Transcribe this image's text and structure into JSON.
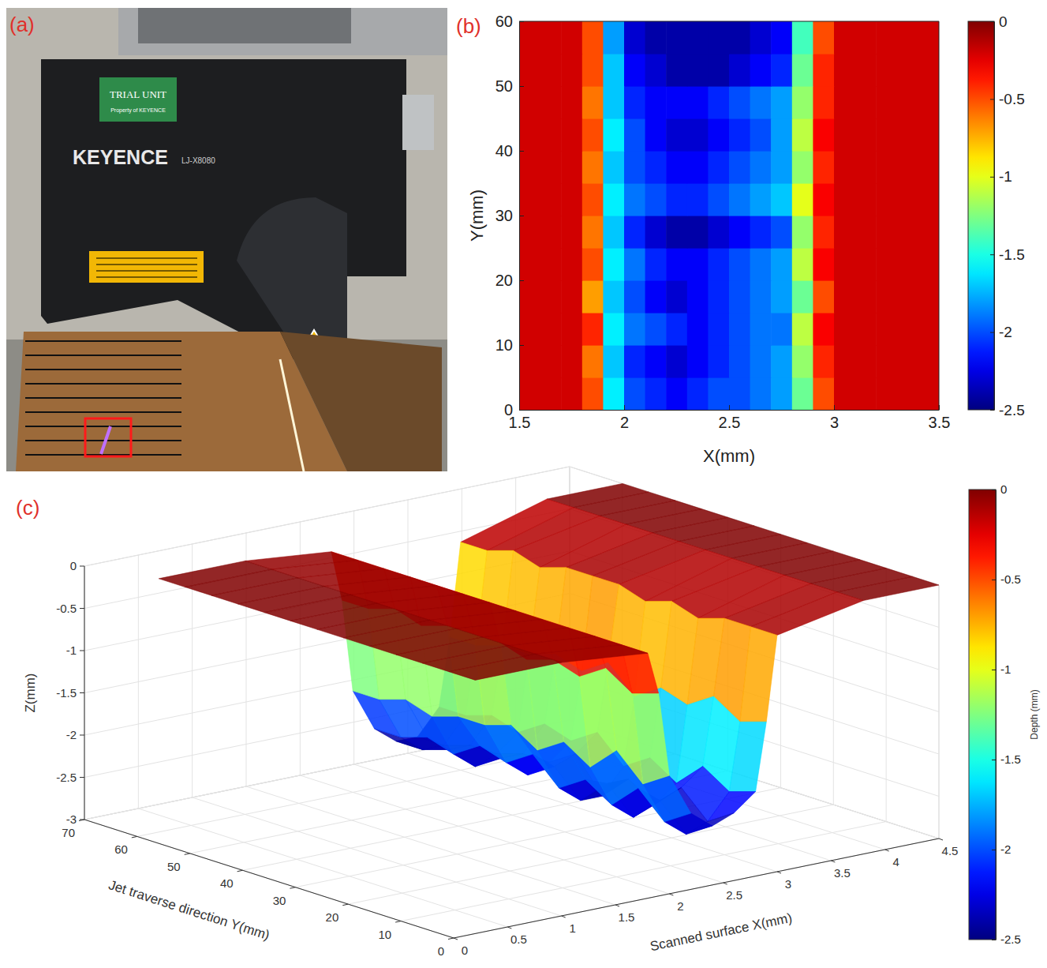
{
  "chart_data": [
    {
      "type": "photo",
      "panel": "(a)",
      "labels": [
        "TRIAL UNIT",
        "Property of KEYENCE",
        "KEYENCE",
        "LJ-X8080"
      ]
    },
    {
      "type": "heatmap",
      "panel": "(b)",
      "x_label": "X(mm)",
      "y_label": "Y(mm)",
      "xlim": [
        1.5,
        3.5
      ],
      "xticks": [
        1.5,
        2,
        2.5,
        3,
        3.5
      ],
      "ylim": [
        0,
        60
      ],
      "yticks": [
        0,
        10,
        20,
        30,
        40,
        50,
        60
      ],
      "x": [
        1.55,
        1.65,
        1.75,
        1.85,
        1.95,
        2.05,
        2.15,
        2.25,
        2.35,
        2.45,
        2.55,
        2.65,
        2.75,
        2.85,
        2.95,
        3.05,
        3.15,
        3.25,
        3.35,
        3.45
      ],
      "y": [
        2.5,
        7.5,
        12.5,
        17.5,
        22.5,
        27.5,
        32.5,
        37.5,
        42.5,
        47.5,
        52.5,
        57.5
      ],
      "values": [
        [
          -0.2,
          -0.2,
          -0.2,
          -0.5,
          -1.6,
          -2.0,
          -2.1,
          -2.2,
          -2.1,
          -2.0,
          -2.0,
          -1.9,
          -1.8,
          -1.3,
          -0.5,
          -0.2,
          -0.2,
          -0.2,
          -0.2,
          -0.2
        ],
        [
          -0.2,
          -0.2,
          -0.2,
          -0.6,
          -1.7,
          -2.1,
          -2.2,
          -2.3,
          -2.2,
          -2.1,
          -2.0,
          -1.9,
          -1.8,
          -1.2,
          -0.4,
          -0.2,
          -0.2,
          -0.2,
          -0.2,
          -0.2
        ],
        [
          -0.2,
          -0.2,
          -0.2,
          -0.4,
          -1.6,
          -1.9,
          -2.0,
          -2.1,
          -2.2,
          -2.1,
          -2.0,
          -1.9,
          -1.9,
          -1.1,
          -0.3,
          -0.2,
          -0.2,
          -0.2,
          -0.2,
          -0.2
        ],
        [
          -0.2,
          -0.2,
          -0.2,
          -0.7,
          -1.7,
          -2.0,
          -2.2,
          -2.3,
          -2.2,
          -2.1,
          -2.0,
          -1.9,
          -1.8,
          -1.3,
          -0.5,
          -0.2,
          -0.2,
          -0.2,
          -0.2,
          -0.2
        ],
        [
          -0.2,
          -0.2,
          -0.2,
          -0.5,
          -1.6,
          -1.9,
          -2.1,
          -2.2,
          -2.2,
          -2.1,
          -2.0,
          -1.9,
          -1.8,
          -1.1,
          -0.3,
          -0.2,
          -0.2,
          -0.2,
          -0.2,
          -0.2
        ],
        [
          -0.2,
          -0.2,
          -0.2,
          -0.6,
          -1.7,
          -2.1,
          -2.3,
          -2.4,
          -2.4,
          -2.3,
          -2.2,
          -2.1,
          -2.0,
          -1.2,
          -0.4,
          -0.2,
          -0.2,
          -0.2,
          -0.2,
          -0.2
        ],
        [
          -0.2,
          -0.2,
          -0.2,
          -0.5,
          -1.6,
          -1.9,
          -2.0,
          -2.1,
          -2.1,
          -2.0,
          -1.9,
          -1.8,
          -1.7,
          -1.0,
          -0.3,
          -0.2,
          -0.2,
          -0.2,
          -0.2,
          -0.2
        ],
        [
          -0.2,
          -0.2,
          -0.2,
          -0.6,
          -1.7,
          -2.0,
          -2.1,
          -2.2,
          -2.2,
          -2.1,
          -2.0,
          -1.9,
          -1.8,
          -1.2,
          -0.4,
          -0.2,
          -0.2,
          -0.2,
          -0.2,
          -0.2
        ],
        [
          -0.2,
          -0.2,
          -0.2,
          -0.5,
          -1.6,
          -2.0,
          -2.2,
          -2.3,
          -2.3,
          -2.2,
          -2.1,
          -2.0,
          -1.8,
          -1.1,
          -0.3,
          -0.2,
          -0.2,
          -0.2,
          -0.2,
          -0.2
        ],
        [
          -0.2,
          -0.2,
          -0.2,
          -0.6,
          -1.7,
          -2.1,
          -2.2,
          -2.2,
          -2.2,
          -2.1,
          -2.0,
          -1.9,
          -1.8,
          -1.2,
          -0.4,
          -0.2,
          -0.2,
          -0.2,
          -0.2,
          -0.2
        ],
        [
          -0.2,
          -0.2,
          -0.2,
          -0.5,
          -1.7,
          -2.2,
          -2.3,
          -2.4,
          -2.4,
          -2.4,
          -2.3,
          -2.2,
          -2.1,
          -1.3,
          -0.4,
          -0.2,
          -0.2,
          -0.2,
          -0.2,
          -0.2
        ],
        [
          -0.2,
          -0.2,
          -0.2,
          -0.5,
          -1.8,
          -2.3,
          -2.4,
          -2.4,
          -2.4,
          -2.4,
          -2.4,
          -2.3,
          -2.2,
          -1.4,
          -0.5,
          -0.2,
          -0.2,
          -0.2,
          -0.2,
          -0.2
        ]
      ],
      "colorbar": {
        "range": [
          -2.5,
          0
        ],
        "ticks": [
          0,
          -0.5,
          -1,
          -1.5,
          -2,
          -2.5
        ]
      }
    },
    {
      "type": "surface",
      "panel": "(c)",
      "x_label": "Scanned surface X(mm)",
      "y_label": "Jet traverse direction Y(mm)",
      "z_label": "Z(mm)",
      "xlim": [
        0,
        4.5
      ],
      "xticks": [
        0,
        0.5,
        1,
        1.5,
        2,
        2.5,
        3,
        3.5,
        4,
        4.5
      ],
      "ylim": [
        0,
        70
      ],
      "yticks": [
        0,
        10,
        20,
        30,
        40,
        50,
        60,
        70
      ],
      "zlim": [
        -3,
        0
      ],
      "zticks": [
        0,
        -0.5,
        -1,
        -1.5,
        -2,
        -2.5,
        -3
      ],
      "grid": true,
      "x": [
        0.2,
        1,
        1.8,
        1.9,
        2,
        2.2,
        2.4,
        2.6,
        2.8,
        2.9,
        3,
        3.8,
        4.5
      ],
      "y": [
        0,
        5,
        10,
        15,
        20,
        25,
        30,
        35,
        40,
        45,
        50,
        55,
        60
      ],
      "values": [
        [
          0,
          0,
          -0.1,
          -0.6,
          -1.6,
          -2.1,
          -2.3,
          -2.2,
          -2.0,
          -1.2,
          -0.2,
          0,
          0
        ],
        [
          0,
          0,
          -0.1,
          -0.7,
          -1.8,
          -2.3,
          -2.5,
          -2.4,
          -2.1,
          -1.3,
          -0.2,
          0,
          0
        ],
        [
          0,
          0,
          -0.1,
          -0.5,
          -1.5,
          -2.0,
          -2.2,
          -2.1,
          -1.9,
          -1.1,
          -0.2,
          0,
          0
        ],
        [
          0,
          0,
          -0.1,
          -0.7,
          -1.8,
          -2.3,
          -2.5,
          -2.4,
          -2.2,
          -1.3,
          -0.3,
          0,
          0
        ],
        [
          0,
          0,
          -0.1,
          -0.6,
          -1.6,
          -2.1,
          -2.2,
          -2.2,
          -2.0,
          -1.2,
          -0.2,
          0,
          0
        ],
        [
          0,
          0,
          -0.1,
          -0.7,
          -1.8,
          -2.3,
          -2.5,
          -2.5,
          -2.2,
          -1.4,
          -0.3,
          0,
          0
        ],
        [
          0,
          0,
          -0.1,
          -0.6,
          -1.6,
          -2.0,
          -2.2,
          -2.1,
          -1.9,
          -1.1,
          -0.2,
          0,
          0
        ],
        [
          0,
          0,
          -0.1,
          -0.6,
          -1.7,
          -2.2,
          -2.4,
          -2.3,
          -2.1,
          -1.3,
          -0.2,
          0,
          0
        ],
        [
          0,
          0,
          -0.1,
          -0.6,
          -1.7,
          -2.1,
          -2.3,
          -2.3,
          -2.0,
          -1.2,
          -0.2,
          0,
          0
        ],
        [
          0,
          0,
          -0.1,
          -0.7,
          -1.8,
          -2.3,
          -2.5,
          -2.4,
          -2.2,
          -1.3,
          -0.3,
          0,
          0
        ],
        [
          0,
          0,
          -0.1,
          -0.6,
          -1.7,
          -2.2,
          -2.4,
          -2.4,
          -2.1,
          -1.3,
          -0.2,
          0,
          0
        ],
        [
          0,
          0,
          -0.1,
          -0.7,
          -1.8,
          -2.3,
          -2.5,
          -2.5,
          -2.2,
          -1.4,
          -0.3,
          0,
          0
        ],
        [
          0,
          0,
          -0.1,
          -0.7,
          -1.8,
          -2.3,
          -2.5,
          -2.5,
          -2.2,
          -1.4,
          -0.3,
          0,
          0
        ]
      ],
      "colorbar": {
        "label": "Depth (mm)",
        "range": [
          -2.5,
          0
        ],
        "ticks": [
          0,
          -0.5,
          -1,
          -1.5,
          -2,
          -2.5
        ]
      }
    }
  ]
}
